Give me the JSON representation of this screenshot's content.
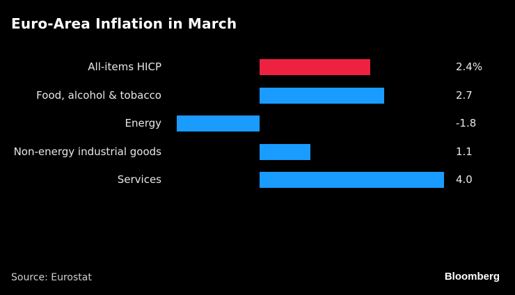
{
  "chart_data": {
    "type": "bar",
    "orientation": "horizontal",
    "title": "Euro-Area Inflation in March",
    "categories": [
      "All-items HICP",
      "Food, alcohol & tobacco",
      "Energy",
      "Non-energy industrial goods",
      "Services"
    ],
    "values": [
      2.4,
      2.7,
      -1.8,
      1.1,
      4.0
    ],
    "value_labels": [
      "2.4%",
      "2.7",
      "-1.8",
      "1.1",
      "4.0"
    ],
    "highlight_index": 0,
    "colors": {
      "highlight": "#ee2240",
      "default": "#1a9cff"
    },
    "xlim": [
      -1.8,
      4.0
    ],
    "xlabel": "",
    "ylabel": "",
    "grid": false,
    "legend": "none"
  },
  "footer": {
    "source": "Source: Eurostat",
    "brand": "Bloomberg"
  }
}
